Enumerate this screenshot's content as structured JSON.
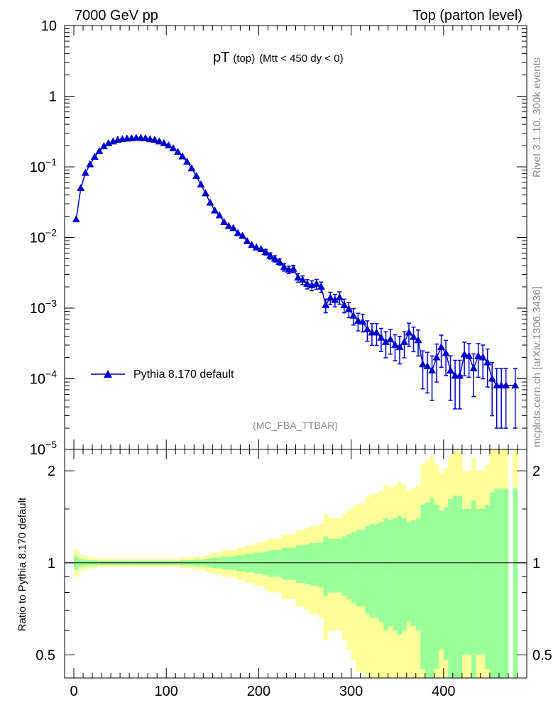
{
  "header": {
    "left": "7000 GeV pp",
    "right": "Top (parton level)"
  },
  "side_text": {
    "rivet": "Rivet 3.1.10,  300k events",
    "mcplots": "mcplots.cern.ch [arXiv:1306.3436]"
  },
  "colors": {
    "series": "#0000cc",
    "band_outer": "#ffff99",
    "band_inner": "#99ff99",
    "axis": "#000000",
    "grey_text": "#888888"
  },
  "chart_data": [
    {
      "type": "line",
      "title": "pT",
      "title_sub": "(top)",
      "title_cut": "(Mtt < 450 dy < 0)",
      "watermark": "(MC_FBA_TTBAR)",
      "yscale": "log",
      "xlim": [
        -10,
        490
      ],
      "ylim": [
        1e-05,
        10
      ],
      "y_ticks": [
        {
          "v": 10,
          "base": "10",
          "exp": ""
        },
        {
          "v": 1,
          "base": "1",
          "exp": ""
        },
        {
          "v": 0.1,
          "base": "10",
          "exp": "−1"
        },
        {
          "v": 0.01,
          "base": "10",
          "exp": "−2"
        },
        {
          "v": 0.001,
          "base": "10",
          "exp": "−3"
        },
        {
          "v": 0.0001,
          "base": "10",
          "exp": "−4"
        },
        {
          "v": 1e-05,
          "base": "10",
          "exp": "−5"
        }
      ],
      "legend": {
        "label": "Pythia 8.170 default",
        "position": "lower-left"
      },
      "series": [
        {
          "name": "Pythia 8.170 default",
          "marker": "triangle",
          "x": [
            2.5,
            7.5,
            12.5,
            17.5,
            22.5,
            27.5,
            32.5,
            37.5,
            42.5,
            47.5,
            52.5,
            57.5,
            62.5,
            67.5,
            72.5,
            77.5,
            82.5,
            87.5,
            92.5,
            97.5,
            102.5,
            107.5,
            112.5,
            117.5,
            122.5,
            127.5,
            132.5,
            137.5,
            142.5,
            147.5,
            152.5,
            157.5,
            162.5,
            167.5,
            172.5,
            177.5,
            182.5,
            187.5,
            192.5,
            197.5,
            202.5,
            207.5,
            212.5,
            217.5,
            222.5,
            227.5,
            232.5,
            237.5,
            242.5,
            247.5,
            252.5,
            257.5,
            262.5,
            267.5,
            272.5,
            277.5,
            282.5,
            287.5,
            292.5,
            297.5,
            302.5,
            307.5,
            312.5,
            317.5,
            322.5,
            327.5,
            332.5,
            337.5,
            342.5,
            347.5,
            352.5,
            357.5,
            362.5,
            367.5,
            372.5,
            377.5,
            382.5,
            387.5,
            392.5,
            397.5,
            402.5,
            407.5,
            412.5,
            417.5,
            422.5,
            427.5,
            432.5,
            437.5,
            442.5,
            447.5,
            452.5,
            457.5,
            462.5,
            467.5,
            477.5
          ],
          "y": [
            0.018,
            0.05,
            0.082,
            0.108,
            0.138,
            0.166,
            0.195,
            0.215,
            0.228,
            0.24,
            0.246,
            0.25,
            0.252,
            0.257,
            0.255,
            0.252,
            0.245,
            0.24,
            0.228,
            0.216,
            0.2,
            0.182,
            0.162,
            0.14,
            0.118,
            0.095,
            0.074,
            0.056,
            0.042,
            0.031,
            0.024,
            0.0205,
            0.0165,
            0.0145,
            0.0135,
            0.0115,
            0.0105,
            0.0088,
            0.0078,
            0.0072,
            0.0068,
            0.0062,
            0.0055,
            0.005,
            0.0045,
            0.0038,
            0.0035,
            0.0036,
            0.0027,
            0.0025,
            0.0022,
            0.0021,
            0.0022,
            0.002,
            0.0011,
            0.0014,
            0.0013,
            0.00142,
            0.0011,
            0.00097,
            0.00078,
            0.00066,
            0.00064,
            0.0005,
            0.00045,
            0.00045,
            0.00038,
            0.00033,
            0.00036,
            0.0003,
            0.00028,
            0.00033,
            0.00045,
            0.00039,
            0.00035,
            0.00016,
            0.00015,
            0.00013,
            0.0002,
            0.00028,
            0.00023,
            0.00013,
            0.00011,
            0.00011,
            0.00022,
            0.00021,
            0.00014,
            0.00021,
            0.0002,
            0.00017,
            0.0001,
            8e-05,
            8e-05,
            8e-05,
            8e-05
          ],
          "y_err_rel": [
            0.05,
            0.03,
            0.025,
            0.02,
            0.02,
            0.015,
            0.015,
            0.015,
            0.015,
            0.015,
            0.015,
            0.015,
            0.015,
            0.015,
            0.015,
            0.015,
            0.015,
            0.015,
            0.015,
            0.015,
            0.015,
            0.015,
            0.015,
            0.02,
            0.02,
            0.02,
            0.025,
            0.025,
            0.03,
            0.035,
            0.04,
            0.04,
            0.05,
            0.05,
            0.05,
            0.06,
            0.06,
            0.07,
            0.07,
            0.08,
            0.08,
            0.09,
            0.1,
            0.1,
            0.1,
            0.12,
            0.12,
            0.12,
            0.14,
            0.14,
            0.15,
            0.16,
            0.16,
            0.17,
            0.22,
            0.2,
            0.2,
            0.2,
            0.22,
            0.24,
            0.26,
            0.28,
            0.28,
            0.32,
            0.34,
            0.34,
            0.36,
            0.4,
            0.38,
            0.4,
            0.42,
            0.4,
            0.36,
            0.38,
            0.4,
            0.55,
            0.58,
            0.62,
            0.55,
            0.48,
            0.52,
            0.62,
            0.66,
            0.66,
            0.5,
            0.5,
            0.6,
            0.5,
            0.5,
            0.55,
            0.7,
            0.75,
            0.75,
            0.75,
            0.75
          ]
        }
      ]
    },
    {
      "type": "area",
      "ylabel": "Ratio to Pythia 8.170 default",
      "xlabel": "",
      "xlim": [
        -10,
        490
      ],
      "ylim": [
        0.42,
        2.35
      ],
      "yscale": "log",
      "y_tick_labels": [
        "0.5",
        "1",
        "2"
      ],
      "x_tick_labels": [
        "0",
        "100",
        "200",
        "300",
        "400"
      ],
      "reference_line": 1.0,
      "bands": {
        "x_edges": [
          0,
          5,
          10,
          15,
          20,
          25,
          30,
          35,
          40,
          45,
          50,
          55,
          60,
          65,
          70,
          75,
          80,
          85,
          90,
          95,
          100,
          105,
          110,
          115,
          120,
          125,
          130,
          135,
          140,
          145,
          150,
          155,
          160,
          165,
          170,
          175,
          180,
          185,
          190,
          195,
          200,
          205,
          210,
          215,
          220,
          225,
          230,
          235,
          240,
          245,
          250,
          255,
          260,
          265,
          270,
          275,
          280,
          285,
          290,
          295,
          300,
          305,
          310,
          315,
          320,
          325,
          330,
          335,
          340,
          345,
          350,
          355,
          360,
          365,
          370,
          375,
          380,
          385,
          390,
          395,
          400,
          405,
          410,
          415,
          420,
          425,
          430,
          435,
          440,
          445,
          450,
          455,
          460,
          465,
          470,
          475,
          480
        ],
        "rel_err": [
          0.05,
          0.03,
          0.025,
          0.02,
          0.02,
          0.015,
          0.015,
          0.015,
          0.015,
          0.015,
          0.015,
          0.015,
          0.015,
          0.015,
          0.015,
          0.015,
          0.015,
          0.015,
          0.015,
          0.015,
          0.015,
          0.015,
          0.015,
          0.02,
          0.02,
          0.02,
          0.025,
          0.025,
          0.03,
          0.035,
          0.04,
          0.04,
          0.05,
          0.05,
          0.05,
          0.06,
          0.06,
          0.07,
          0.07,
          0.08,
          0.08,
          0.09,
          0.1,
          0.1,
          0.1,
          0.12,
          0.12,
          0.12,
          0.14,
          0.14,
          0.15,
          0.16,
          0.16,
          0.17,
          0.22,
          0.2,
          0.2,
          0.2,
          0.22,
          0.24,
          0.26,
          0.28,
          0.28,
          0.32,
          0.34,
          0.34,
          0.36,
          0.4,
          0.38,
          0.4,
          0.42,
          0.4,
          0.36,
          0.38,
          0.4,
          0.55,
          0.58,
          0.62,
          0.55,
          0.48,
          0.52,
          0.62,
          0.66,
          0.66,
          0.5,
          0.5,
          0.6,
          0.5,
          0.5,
          0.55,
          0.7,
          0.75,
          0.75,
          0.75,
          0.0,
          0.75
        ]
      }
    }
  ]
}
